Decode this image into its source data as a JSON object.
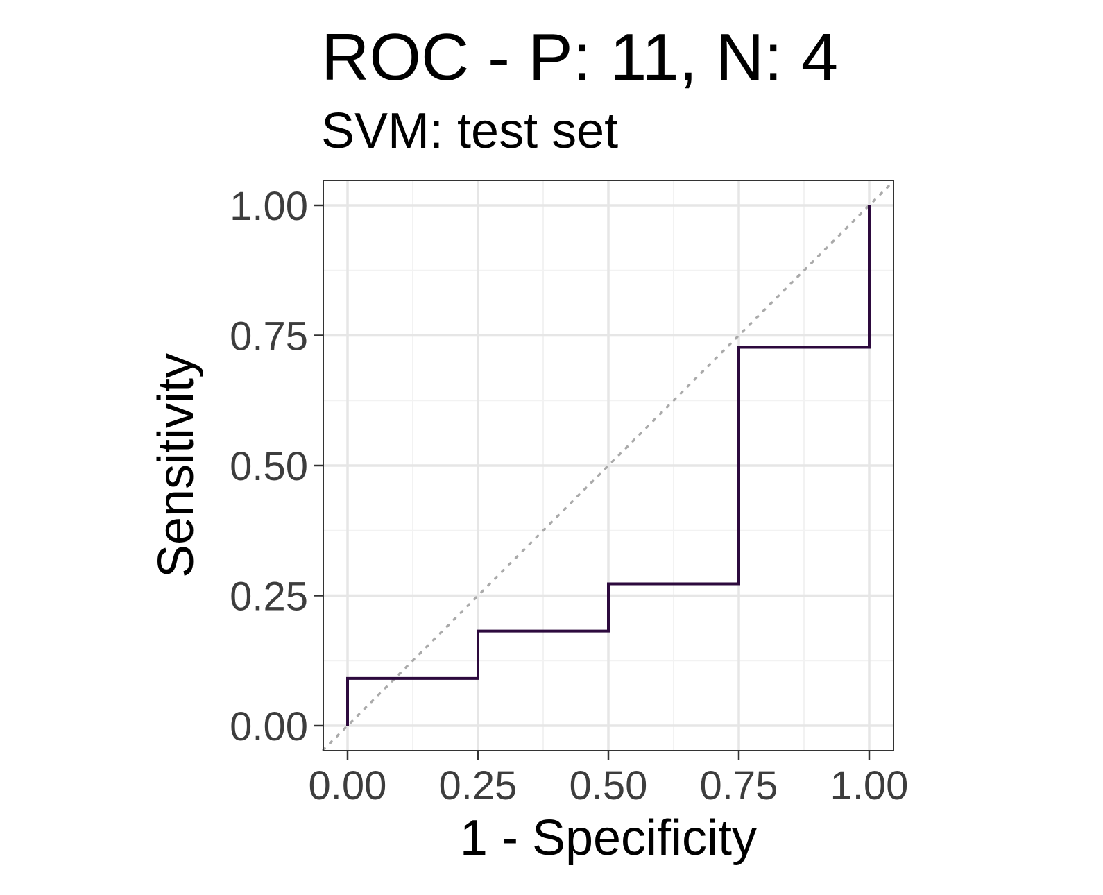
{
  "chart_data": {
    "type": "line",
    "title": "ROC - P: 11, N: 4",
    "subtitle": "SVM: test set",
    "xlabel": "1 - Specificity",
    "ylabel": "Sensitivity",
    "xlim": [
      0,
      1
    ],
    "ylim": [
      0,
      1
    ],
    "x_ticks": [
      "0.00",
      "0.25",
      "0.50",
      "0.75",
      "1.00"
    ],
    "y_ticks": [
      "0.00",
      "0.25",
      "0.50",
      "0.75",
      "1.00"
    ],
    "grid": true,
    "legend": "none",
    "colors": {
      "curve": "#2d0a3e",
      "diagonal": "#aaaaaa",
      "grid_major": "#e6e6e6",
      "grid_minor": "#f2f2f2",
      "panel_border": "#333333",
      "tick_text": "#3d3d3d"
    },
    "series": [
      {
        "style": "step",
        "x": [
          0.0,
          0.0,
          0.25,
          0.25,
          0.5,
          0.5,
          0.75,
          0.75,
          1.0,
          1.0
        ],
        "y": [
          0.0,
          0.0909,
          0.0909,
          0.1818,
          0.1818,
          0.2727,
          0.2727,
          0.7273,
          0.7273,
          1.0
        ]
      }
    ],
    "reference_line": {
      "style": "dotted",
      "x": [
        0,
        1
      ],
      "y": [
        0,
        1
      ]
    }
  }
}
